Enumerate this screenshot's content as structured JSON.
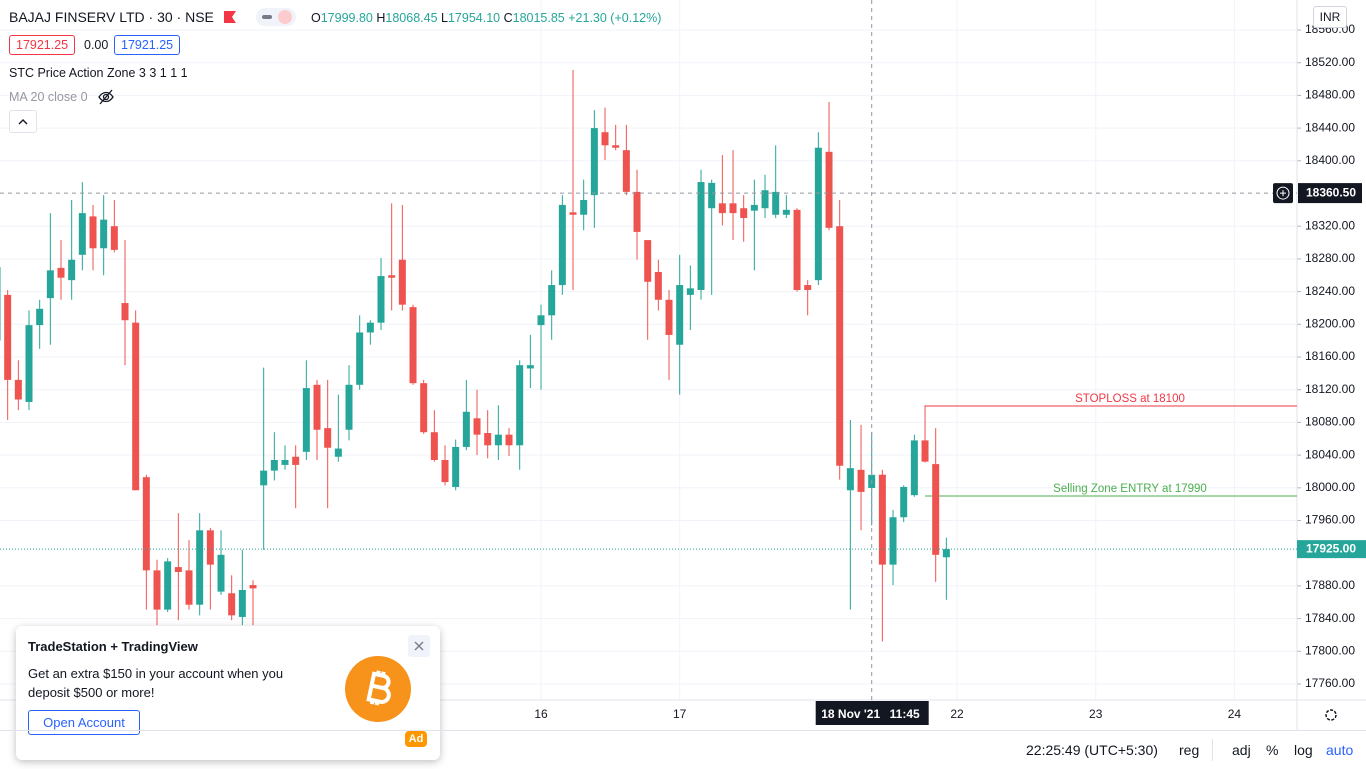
{
  "header": {
    "symbol": "BAJAJ FINSERV LTD · 30 · NSE",
    "ohlc": [
      {
        "label": "O",
        "value": "17999.80"
      },
      {
        "label": "H",
        "value": "18068.45"
      },
      {
        "label": "L",
        "value": "17954.10"
      },
      {
        "label": "C",
        "value": "18015.85"
      }
    ],
    "change": "+21.30 (+0.12%)",
    "currency": "INR"
  },
  "indicators": {
    "price_a": "17921.25",
    "spread": "0.00",
    "price_b": "17921.25",
    "stc": "STC Price Action Zone 3 3 1 1 1",
    "ma": "MA 20 close 0"
  },
  "chart_data": {
    "type": "candlestick",
    "up_color": "#26a69a",
    "down_color": "#ef5350",
    "grid": true,
    "ylim": [
      17760,
      18560
    ],
    "yticks": [
      {
        "value": 17760,
        "label": "17760.00"
      },
      {
        "value": 17800,
        "label": "17800.00"
      },
      {
        "value": 17840,
        "label": "17840.00"
      },
      {
        "value": 17880,
        "label": "17880.00"
      },
      {
        "value": 17960,
        "label": "17960.00"
      },
      {
        "value": 18000,
        "label": "18000.00"
      },
      {
        "value": 18040,
        "label": "18040.00"
      },
      {
        "value": 18080,
        "label": "18080.00"
      },
      {
        "value": 18120,
        "label": "18120.00"
      },
      {
        "value": 18160,
        "label": "18160.00"
      },
      {
        "value": 18200,
        "label": "18200.00"
      },
      {
        "value": 18240,
        "label": "18240.00"
      },
      {
        "value": 18280,
        "label": "18280.00"
      },
      {
        "value": 18320,
        "label": "18320.00"
      },
      {
        "value": 18400,
        "label": "18400.00"
      },
      {
        "value": 18440,
        "label": "18440.00"
      },
      {
        "value": 18480,
        "label": "18480.00"
      },
      {
        "value": 18520,
        "label": "18520.00"
      },
      {
        "value": 18560,
        "label": "18560.00"
      }
    ],
    "categories": [
      null,
      null,
      null,
      null,
      null,
      null,
      null,
      null,
      null,
      null,
      null,
      null,
      null,
      null,
      null,
      null,
      null,
      null,
      null,
      null,
      null,
      null,
      null,
      null,
      null,
      null,
      null,
      null,
      null,
      null,
      null,
      null,
      null,
      null,
      null,
      null,
      null,
      null,
      null,
      null,
      null,
      null,
      null,
      null,
      null,
      null,
      null,
      null,
      null,
      null,
      null,
      "16",
      null,
      null,
      null,
      null,
      null,
      null,
      null,
      null,
      null,
      null,
      null,
      null,
      "17",
      null,
      null,
      null,
      null,
      null,
      null,
      null,
      null,
      null,
      null,
      null,
      null,
      null,
      null,
      null,
      null,
      null,
      null,
      null,
      null,
      null,
      null,
      null,
      null,
      null,
      "22",
      null,
      null,
      null,
      null,
      null,
      null,
      null,
      null,
      null,
      null,
      null,
      null,
      "23",
      null,
      null,
      null,
      null,
      null,
      null,
      null,
      null,
      null,
      null,
      null,
      null,
      "24",
      null,
      null,
      null,
      null,
      null
    ],
    "open": [
      18180,
      18236,
      18132,
      18105,
      18199,
      18232,
      18269,
      18254,
      18285,
      18332,
      18293,
      18320,
      18226,
      18202,
      18013,
      17899,
      17851,
      17903,
      17899,
      17857,
      17948,
      17873,
      17871,
      17842,
      17881,
      18003,
      18021,
      18028,
      18038,
      18044,
      18126,
      18073,
      18038,
      18071,
      18126,
      18190,
      18202,
      18260,
      18279,
      18221,
      18128,
      18068,
      18034,
      18001,
      18050,
      18085,
      18067,
      18052,
      18065,
      18052,
      18146,
      18199,
      18211,
      18248,
      18337,
      18334,
      18358,
      18435,
      18419,
      18413,
      18362,
      18303,
      18264,
      18230,
      18175,
      18236,
      18242,
      18342,
      18348,
      18348,
      18342,
      18339,
      18342,
      18334,
      18334,
      18340,
      18248,
      18254,
      18411,
      18320,
      17997,
      18022,
      17999.8,
      18016,
      17906,
      17964,
      17991,
      18058,
      18029,
      17915,
      null,
      null,
      null,
      null,
      null,
      null,
      null,
      null,
      null,
      null,
      null,
      null,
      null,
      null,
      null,
      null,
      null,
      null,
      null,
      null,
      null,
      null,
      null,
      null,
      null,
      null,
      null,
      null,
      null,
      null,
      null,
      null
    ],
    "high": [
      18290,
      18242,
      18156,
      18217,
      18230,
      18336,
      18303,
      18352,
      18374,
      18346,
      18358,
      18352,
      18303,
      18217,
      18016,
      17912,
      17914,
      17969,
      17936,
      17969,
      17951,
      17948,
      17893,
      17924,
      17887,
      18147,
      18068,
      18052,
      18052,
      18156,
      18132,
      18132,
      18114,
      18150,
      18211,
      18205,
      18281,
      18348,
      18346,
      18224,
      18132,
      18095,
      18052,
      18059,
      18132,
      18120,
      18095,
      18101,
      18073,
      18156,
      18187,
      18224,
      18266,
      18358,
      18511,
      18377,
      18462,
      18465,
      18444,
      18444,
      18389,
      18303,
      18279,
      18242,
      18285,
      18272,
      18389,
      18377,
      18407,
      18413,
      18358,
      18377,
      18383,
      18419,
      18358,
      18342,
      18254,
      18435,
      18472,
      18352,
      18083,
      18077,
      18068.45,
      18022,
      17973,
      18003,
      18065,
      18101,
      18073,
      17939,
      null,
      null,
      null,
      null,
      null,
      null,
      null,
      null,
      null,
      null,
      null,
      null,
      null,
      null,
      null,
      null,
      null,
      null,
      null,
      null,
      null,
      null,
      null,
      null,
      null,
      null,
      null,
      null,
      null,
      null,
      null,
      null
    ],
    "low": [
      18150,
      18083,
      18095,
      18095,
      18170,
      18175,
      18230,
      18230,
      18266,
      18266,
      18260,
      18288,
      18150,
      17997,
      17851,
      17832,
      17848,
      17838,
      17851,
      17844,
      17851,
      17869,
      17838,
      17832,
      17832,
      17924,
      18009,
      18022,
      17975,
      18034,
      18034,
      17975,
      18032,
      18058,
      18120,
      18175,
      18193,
      18217,
      18217,
      18126,
      18066,
      18032,
      18003,
      17997,
      18046,
      18040,
      18036,
      18034,
      18039,
      18022,
      18122,
      18120,
      18181,
      18236,
      18242,
      18315,
      18318,
      18401,
      18413,
      18358,
      18279,
      18181,
      18217,
      18132,
      18114,
      18193,
      18230,
      18236,
      18321,
      18303,
      18301,
      18266,
      18330,
      18330,
      18330,
      18240,
      18211,
      18248,
      18315,
      18010,
      17851,
      17948,
      17954.1,
      17812,
      17881,
      17958,
      17989,
      18031,
      17885,
      17863,
      null,
      null,
      null,
      null,
      null,
      null,
      null,
      null,
      null,
      null,
      null,
      null,
      null,
      null,
      null,
      null,
      null,
      null,
      null,
      null,
      null,
      null,
      null,
      null,
      null,
      null,
      null,
      null,
      null,
      null,
      null,
      null
    ],
    "close": [
      18270,
      18132,
      18108,
      18199,
      18219,
      18266,
      18257,
      18279,
      18336,
      18293,
      18328,
      18291,
      18205,
      17997,
      17899,
      17851,
      17910,
      17897,
      17857,
      17948,
      17906,
      17918,
      17844,
      17875,
      17877,
      18021,
      18034,
      18034,
      18028,
      18122,
      18071,
      18049,
      18048,
      18126,
      18190,
      18202,
      18259,
      18257,
      18224,
      18128,
      18068,
      18034,
      18007,
      18050,
      18093,
      18065,
      18052,
      18065,
      18052,
      18150,
      18150,
      18211,
      18248,
      18346,
      18334,
      18352,
      18440,
      18419,
      18416,
      18362,
      18313,
      18252,
      18230,
      18187,
      18248,
      18244,
      18374,
      18373,
      18336,
      18336,
      18330,
      18346,
      18364,
      18362,
      18340,
      18242,
      18242,
      18416,
      18318,
      18027,
      18024,
      17995,
      18015.85,
      17906,
      17964,
      18001,
      18058,
      18032,
      17918,
      17925,
      null,
      null,
      null,
      null,
      null,
      null,
      null,
      null,
      null,
      null,
      null,
      null,
      null,
      null,
      null,
      null,
      null,
      null,
      null,
      null,
      null,
      null,
      null,
      null,
      null,
      null,
      null,
      null,
      null,
      null,
      null,
      null
    ],
    "price_lines": [
      {
        "label": "STOPLOSS at 18100",
        "value": 18100,
        "color": "#f23645",
        "start": 87
      },
      {
        "label": "Selling Zone ENTRY at 17990",
        "value": 17990,
        "color": "#4caf50",
        "start": 87
      }
    ],
    "current_price": {
      "value": 17925,
      "label": "17925.00",
      "color": "#26a69a"
    },
    "crosshair": {
      "price": 18360.5,
      "price_label": "18360.50",
      "category": 82,
      "date": "18 Nov '21",
      "time": "11:45"
    }
  },
  "ad": {
    "title": "TradeStation + TradingView",
    "body": "Get an extra $150 in your account when you deposit $500 or more!",
    "button": "Open Account",
    "badge": "Ad"
  },
  "status_bar": {
    "clock": "22:25:49 (UTC+5:30)",
    "buttons": [
      "reg",
      "adj",
      "%",
      "log",
      "auto"
    ]
  }
}
